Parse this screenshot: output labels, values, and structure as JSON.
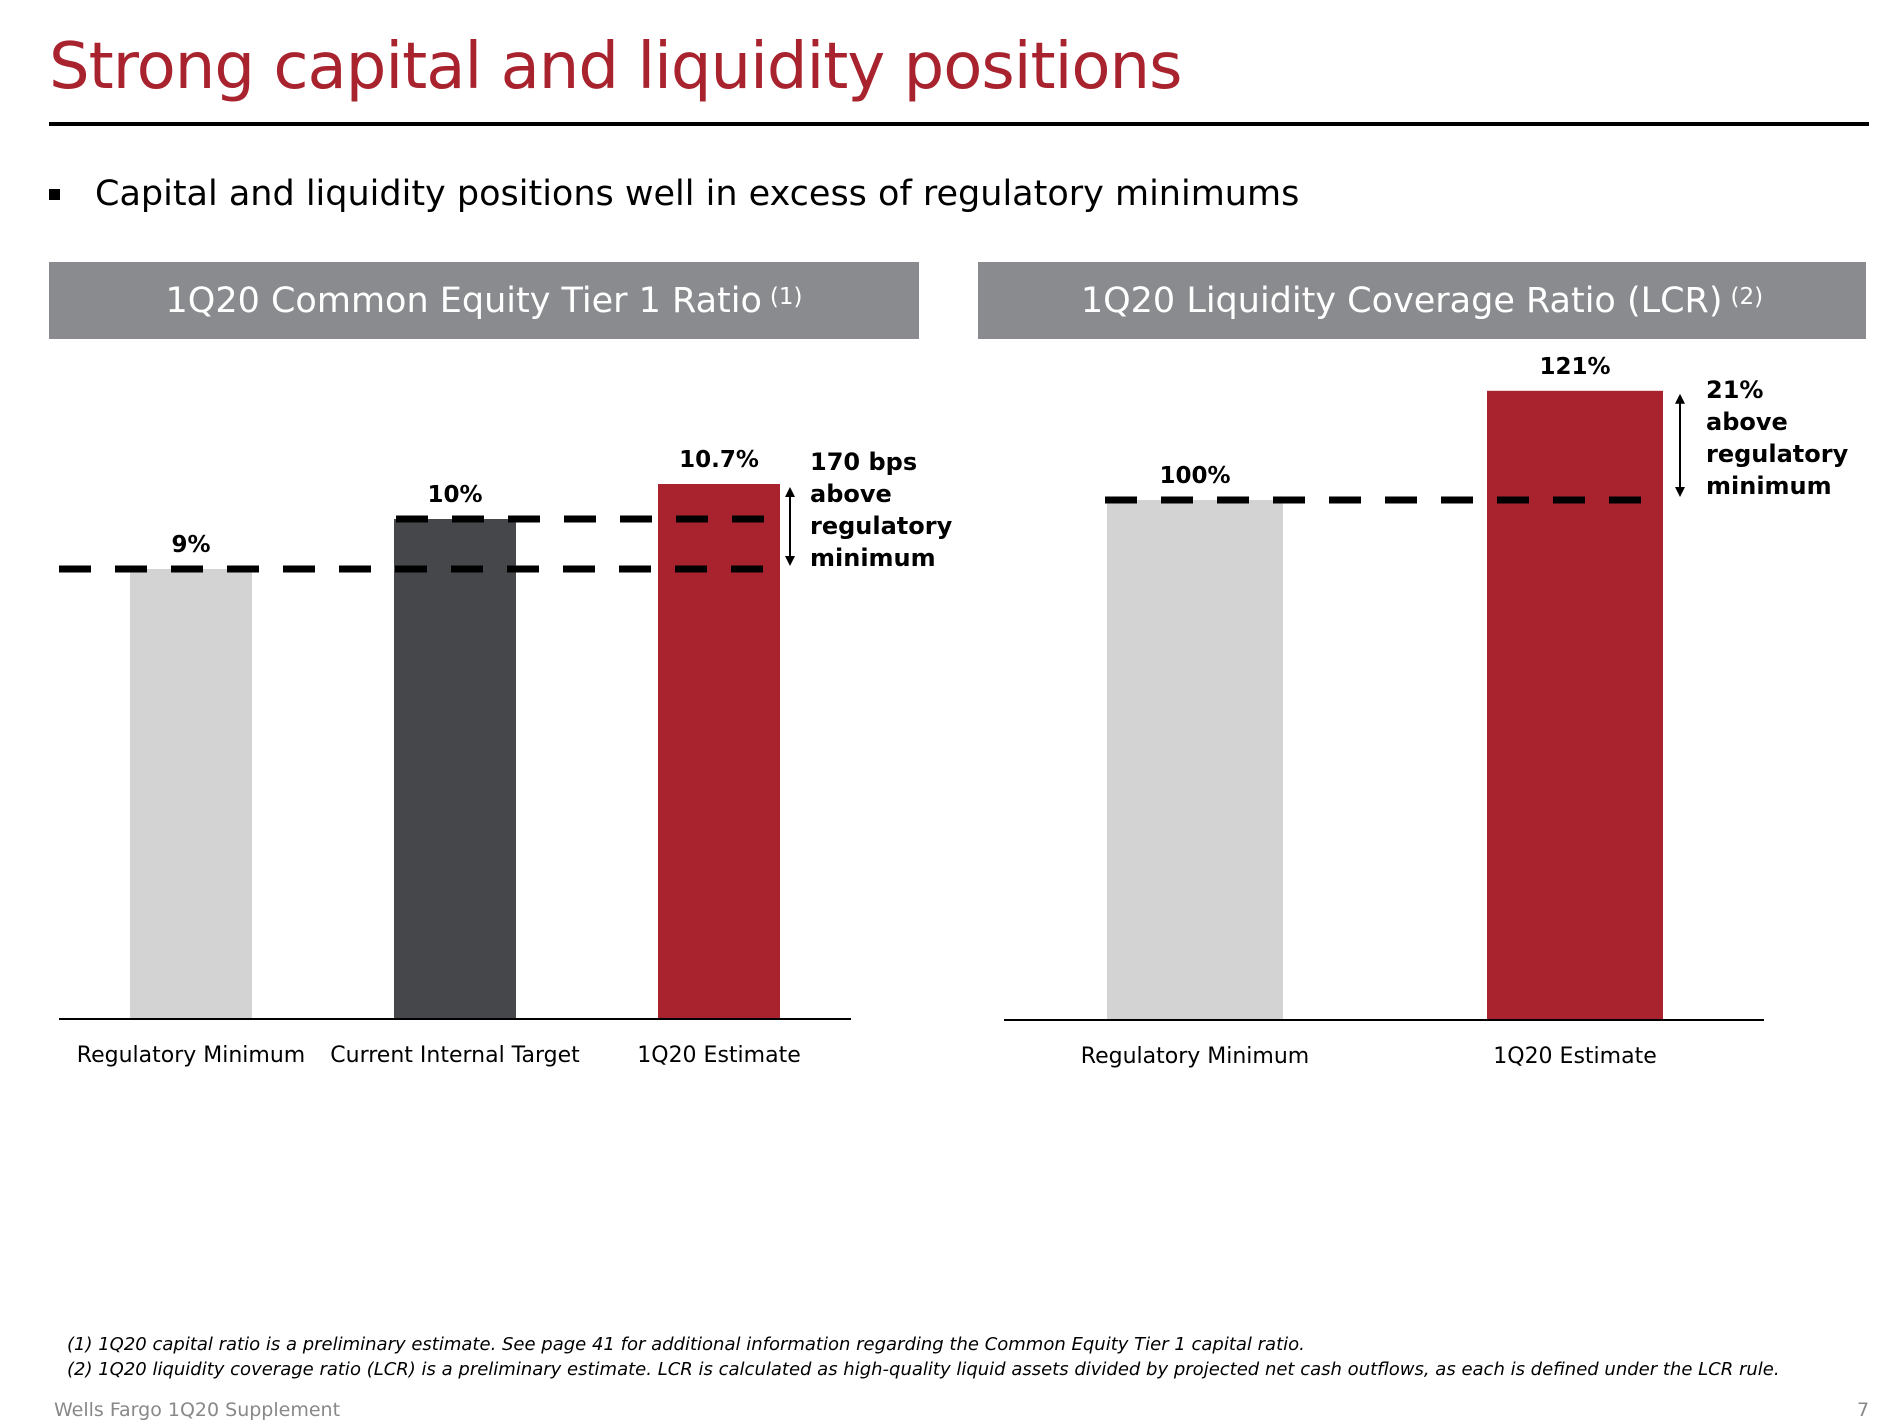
{
  "title": "Strong capital and liquidity positions",
  "bullet": "Capital and liquidity positions well in excess of regulatory minimums",
  "colors": {
    "title": "#a8232e",
    "header_bg": "#898b8e",
    "regulatory_minimum": "#d3d3d3",
    "internal_target": "#46474b",
    "estimate": "#a8232e"
  },
  "chart_data": [
    {
      "type": "bar",
      "title": "1Q20 Common Equity Tier 1 Ratio",
      "title_sup": "(1)",
      "categories": [
        "Regulatory Minimum",
        "Current Internal Target",
        "1Q20 Estimate"
      ],
      "values": [
        9,
        10,
        10.7
      ],
      "value_labels": [
        "9%",
        "10%",
        "10.7%"
      ],
      "annotation": [
        "170 bps",
        "above",
        "regulatory",
        "minimum"
      ]
    },
    {
      "type": "bar",
      "title": "1Q20 Liquidity Coverage Ratio (LCR)",
      "title_sup": "(2)",
      "categories": [
        "Regulatory Minimum",
        "1Q20 Estimate"
      ],
      "values": [
        100,
        121
      ],
      "value_labels": [
        "100%",
        "121%"
      ],
      "annotation": [
        "21%",
        "above",
        "regulatory",
        "minimum"
      ]
    }
  ],
  "footnotes": [
    "(1) 1Q20 capital ratio is a preliminary estimate. See page 41 for additional information regarding the Common Equity Tier 1 capital ratio.",
    "(2) 1Q20 liquidity coverage ratio (LCR) is  a preliminary estimate. LCR is calculated as high-quality liquid assets divided by projected net cash outflows, as each is defined under the LCR rule."
  ],
  "footer": {
    "source": "Wells Fargo 1Q20 Supplement",
    "page": "7"
  }
}
